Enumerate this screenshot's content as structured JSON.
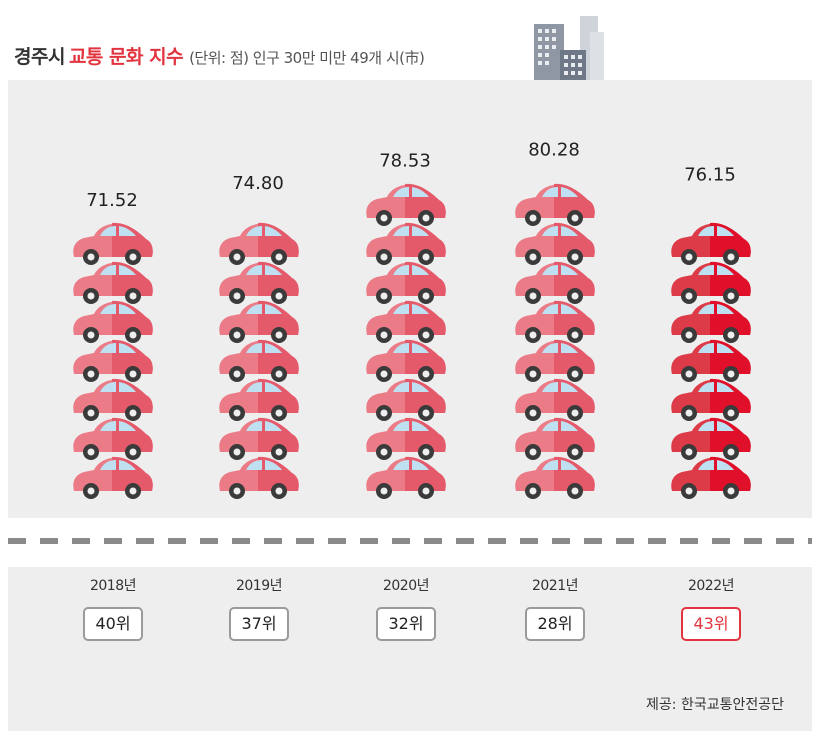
{
  "header": {
    "title_city": "경주시",
    "title_index": "교통 문화 지수",
    "unit_note": "(단위: 점) 인구 30만 미만 49개 시(市)"
  },
  "chart_data": {
    "type": "bar",
    "categories": [
      "2018년",
      "2019년",
      "2020년",
      "2021년",
      "2022년"
    ],
    "values": [
      71.52,
      74.8,
      78.53,
      80.28,
      76.15
    ],
    "value_labels": [
      "71.52",
      "74.80",
      "78.53",
      "80.28",
      "76.15"
    ],
    "ranks": [
      "40위",
      "37위",
      "32위",
      "28위",
      "43위"
    ],
    "highlight_index": 4,
    "ylim": [
      0,
      100
    ],
    "title": "",
    "xlabel": "",
    "ylabel": ""
  },
  "colors": {
    "car_normal": "#eb7b86",
    "car_normal_dark": "#e55a6b",
    "car_highlight": "#dc3b47",
    "car_highlight_dark": "#e0102a",
    "window": "#bfe0f0",
    "accent": "#e2343f"
  },
  "footer": {
    "source": "제공: 한국교통안전공단"
  }
}
